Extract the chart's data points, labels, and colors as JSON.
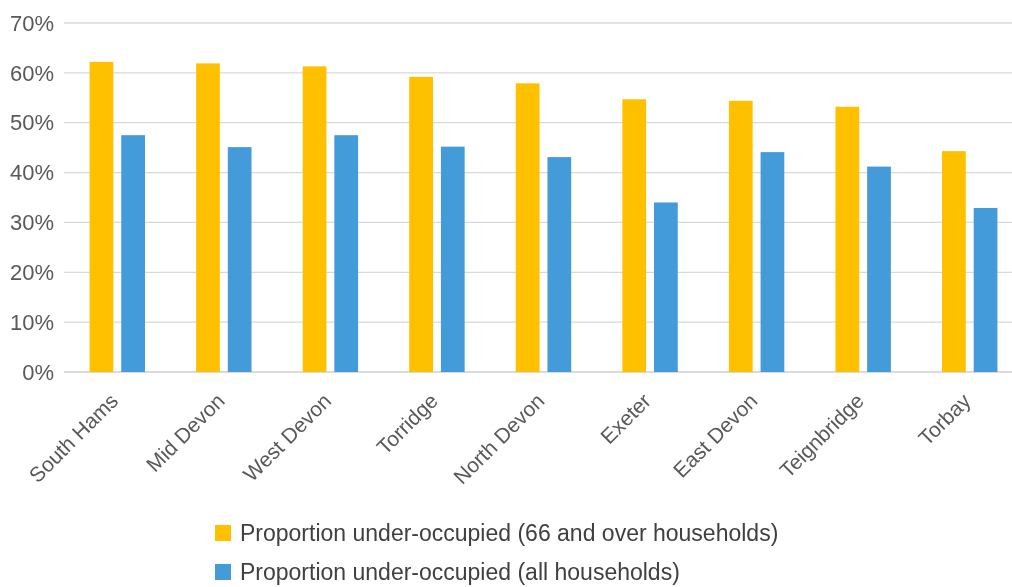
{
  "chart_data": {
    "type": "bar",
    "categories": [
      "South Hams",
      "Mid Devon",
      "West Devon",
      "Torridge",
      "North Devon",
      "Exeter",
      "East Devon",
      "Teignbridge",
      "Torbay"
    ],
    "series": [
      {
        "name": "Proportion under-occupied (66 and over households)",
        "color": "#ffc000",
        "values": [
          62.2,
          61.9,
          61.3,
          59.2,
          57.9,
          54.7,
          54.4,
          53.2,
          44.3
        ]
      },
      {
        "name": "Proportion under-occupied (all households)",
        "color": "#439bda",
        "values": [
          47.5,
          45.1,
          47.5,
          45.2,
          43.1,
          34.0,
          44.1,
          41.2,
          32.9
        ]
      }
    ],
    "ylim": [
      0,
      70
    ],
    "yticks": [
      {
        "value": 0,
        "label": "0%"
      },
      {
        "value": 10,
        "label": "10%"
      },
      {
        "value": 20,
        "label": "20%"
      },
      {
        "value": 30,
        "label": "30%"
      },
      {
        "value": 40,
        "label": "40%"
      },
      {
        "value": 50,
        "label": "50%"
      },
      {
        "value": 60,
        "label": "60%"
      },
      {
        "value": 70,
        "label": "70%"
      }
    ],
    "grid": "y",
    "legend": "bottom"
  }
}
